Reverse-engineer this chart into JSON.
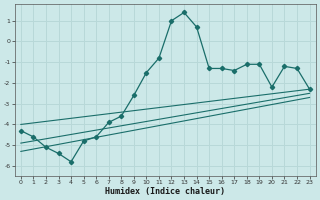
{
  "title": "",
  "xlabel": "Humidex (Indice chaleur)",
  "ylabel": "",
  "bg_color": "#cce8e8",
  "grid_color": "#b8d8d8",
  "line_color": "#1a6e6a",
  "xlim": [
    -0.5,
    23.5
  ],
  "ylim": [
    -6.5,
    1.8
  ],
  "yticks": [
    1,
    0,
    -1,
    -2,
    -3,
    -4,
    -5,
    -6
  ],
  "xticks": [
    0,
    1,
    2,
    3,
    4,
    5,
    6,
    7,
    8,
    9,
    10,
    11,
    12,
    13,
    14,
    15,
    16,
    17,
    18,
    19,
    20,
    21,
    22,
    23
  ],
  "curve1_x": [
    0,
    1,
    2,
    3,
    4,
    5,
    6,
    7,
    8,
    9,
    10,
    11,
    12,
    13,
    14,
    15,
    16,
    17,
    18,
    19,
    20,
    21,
    22,
    23
  ],
  "curve1_y": [
    -4.3,
    -4.6,
    -5.1,
    -5.4,
    -5.8,
    -4.8,
    -4.6,
    -3.9,
    -3.6,
    -2.6,
    -1.5,
    -0.8,
    1.0,
    1.4,
    0.7,
    -1.3,
    -1.3,
    -1.4,
    -1.1,
    -1.1,
    -2.2,
    -1.2,
    -1.3,
    -2.3
  ],
  "curve2_x": [
    0,
    23
  ],
  "curve2_y": [
    -4.0,
    -2.3
  ],
  "curve3_x": [
    0,
    23
  ],
  "curve3_y": [
    -4.9,
    -2.5
  ],
  "curve4_x": [
    0,
    23
  ],
  "curve4_y": [
    -5.3,
    -2.7
  ]
}
